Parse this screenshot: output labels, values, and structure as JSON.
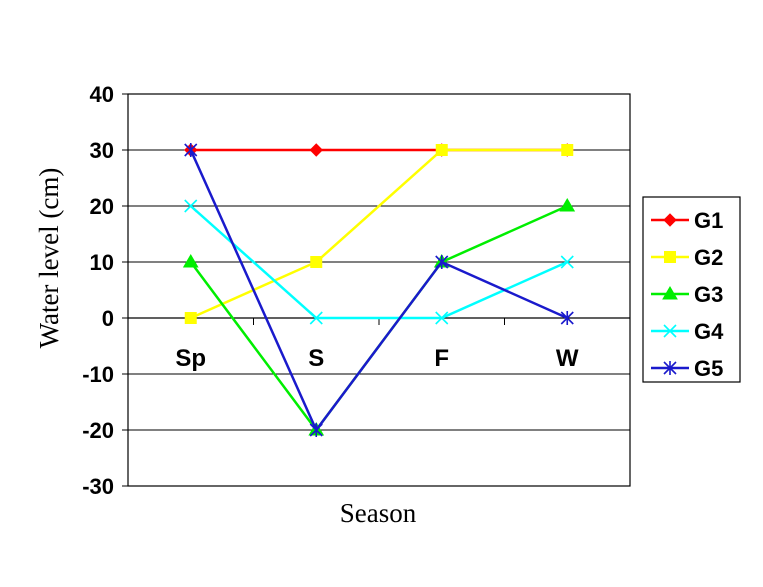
{
  "chart_data": {
    "type": "line",
    "title": "",
    "xlabel": "Season",
    "ylabel": "Water level (cm)",
    "categories": [
      "Sp",
      "S",
      "F",
      "W"
    ],
    "ylim": [
      -30,
      40
    ],
    "yticks": [
      40,
      30,
      20,
      10,
      0,
      -10,
      -20,
      -30
    ],
    "grid": true,
    "legend_position": "right",
    "series": [
      {
        "name": "G1",
        "values": [
          30,
          30,
          30,
          30
        ],
        "color": "#ff0000",
        "marker": "diamond"
      },
      {
        "name": "G2",
        "values": [
          0,
          10,
          30,
          30
        ],
        "color": "#ffff00",
        "marker": "square"
      },
      {
        "name": "G3",
        "values": [
          10,
          -20,
          10,
          20
        ],
        "color": "#00ee00",
        "marker": "triangle"
      },
      {
        "name": "G4",
        "values": [
          20,
          0,
          0,
          10
        ],
        "color": "#00ffff",
        "marker": "x"
      },
      {
        "name": "G5",
        "values": [
          30,
          -20,
          10,
          0
        ],
        "color": "#1a1acc",
        "marker": "star"
      }
    ]
  }
}
